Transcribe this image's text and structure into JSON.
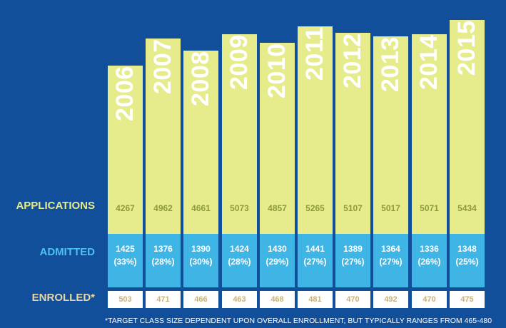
{
  "row_labels": {
    "applications": "APPLICATIONS",
    "admitted": "ADMITTED",
    "enrolled": "ENROLLED*"
  },
  "footnote": "*TARGET CLASS SIZE DEPENDENT UPON OVERALL ENROLLMENT, BUT TYPICALLY RANGES FROM 465-480",
  "colors": {
    "background": "#124f9a",
    "applications": "#e6ec8c",
    "admitted": "#3fb5e5",
    "enrolled": "#ffffff"
  },
  "chart_data": {
    "type": "bar",
    "categories": [
      "2006",
      "2007",
      "2008",
      "2009",
      "2010",
      "2011",
      "2012",
      "2013",
      "2014",
      "2015"
    ],
    "series": [
      {
        "name": "APPLICATIONS",
        "values": [
          4267,
          4962,
          4661,
          5073,
          4857,
          5265,
          5107,
          5017,
          5071,
          5434
        ]
      },
      {
        "name": "ADMITTED",
        "values": [
          1425,
          1376,
          1390,
          1424,
          1430,
          1441,
          1389,
          1364,
          1336,
          1348
        ],
        "labels": [
          "(33%)",
          "(28%)",
          "(30%)",
          "(28%)",
          "(29%)",
          "(27%)",
          "(27%)",
          "(27%)",
          "(26%)",
          "(25%)"
        ]
      },
      {
        "name": "ENROLLED*",
        "values": [
          503,
          471,
          466,
          463,
          468,
          481,
          470,
          492,
          470,
          475
        ]
      }
    ]
  }
}
